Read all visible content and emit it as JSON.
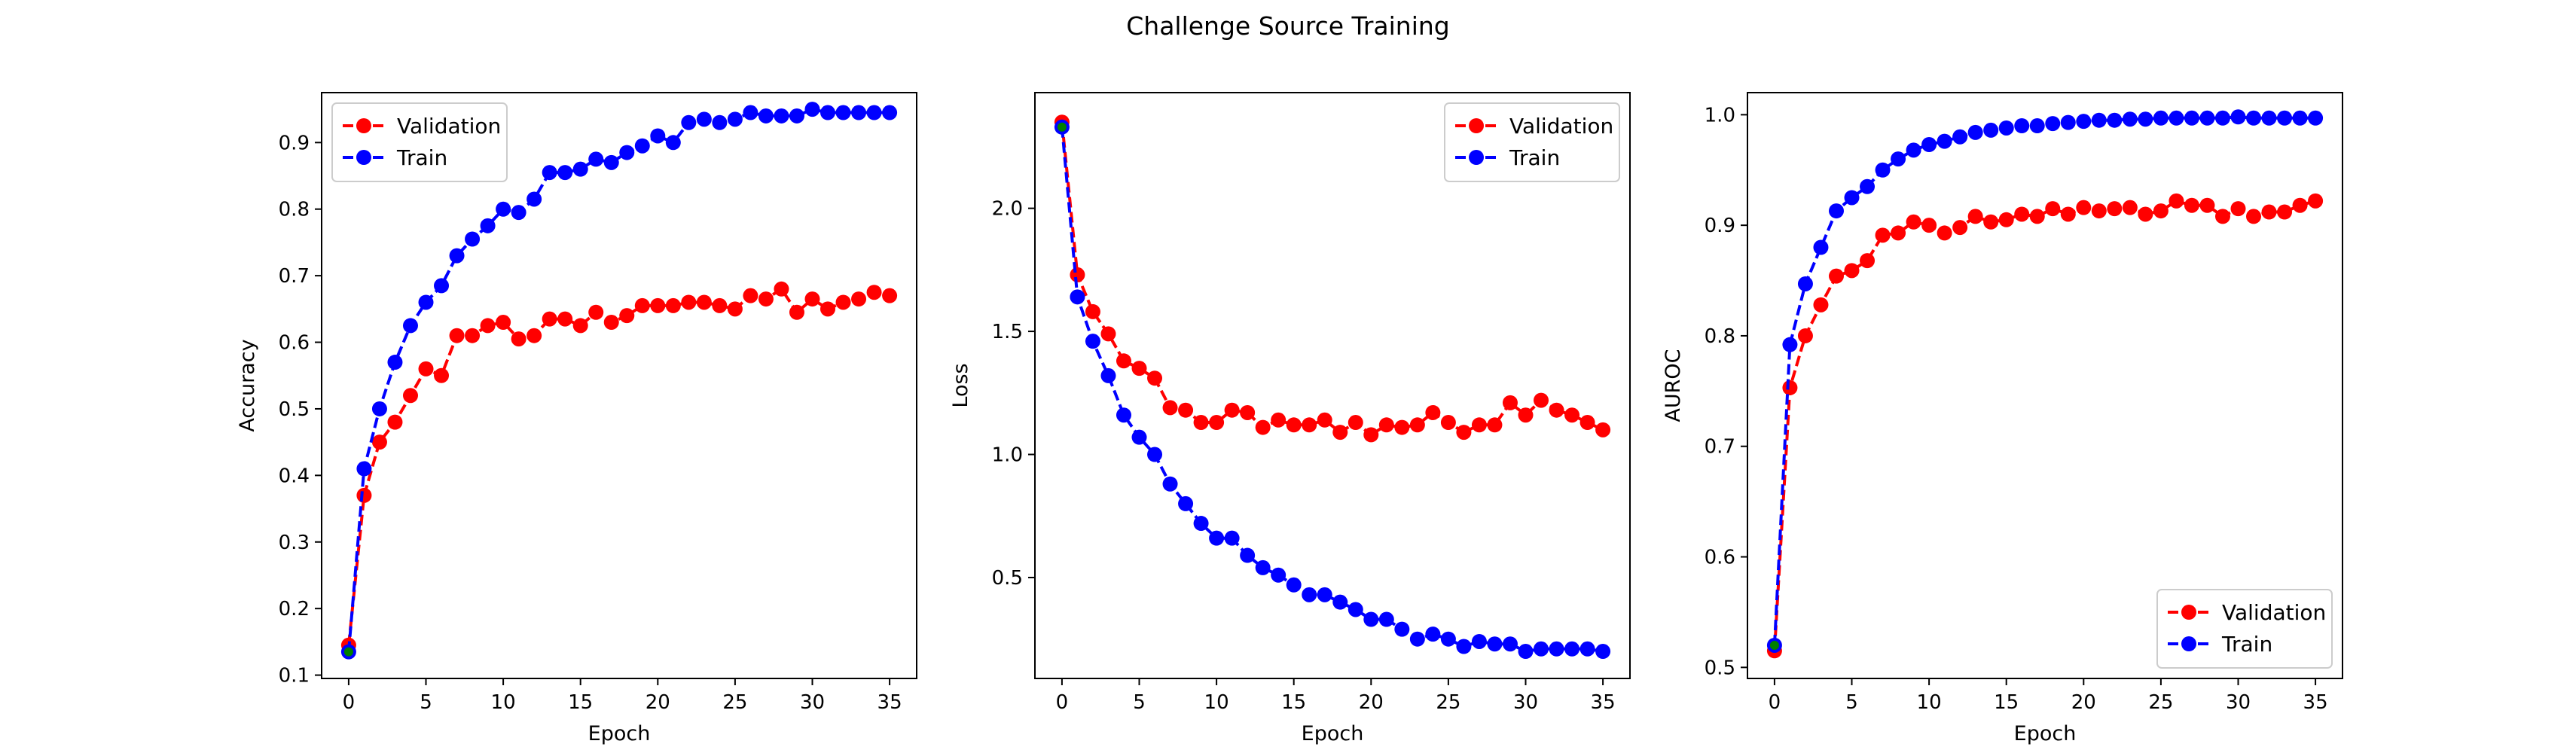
{
  "figure": {
    "suptitle": "Challenge Source Training"
  },
  "colors": {
    "validation": "#ff0000",
    "train": "#0000ff",
    "first_point_accent": "#008000"
  },
  "chart_data": [
    {
      "type": "line",
      "title": "",
      "xlabel": "Epoch",
      "ylabel": "Accuracy",
      "xlim": [
        -1.75,
        36.75
      ],
      "ylim": [
        0.095,
        0.975
      ],
      "xticks": [
        0,
        5,
        10,
        15,
        20,
        25,
        30,
        35
      ],
      "yticks": [
        0.1,
        0.2,
        0.3,
        0.4,
        0.5,
        0.6,
        0.7,
        0.8,
        0.9
      ],
      "ytick_labels": [
        "0.1",
        "0.2",
        "0.3",
        "0.4",
        "0.5",
        "0.6",
        "0.7",
        "0.8",
        "0.9"
      ],
      "grid": false,
      "legend_position": "upper-left",
      "x": [
        0,
        1,
        2,
        3,
        4,
        5,
        6,
        7,
        8,
        9,
        10,
        11,
        12,
        13,
        14,
        15,
        16,
        17,
        18,
        19,
        20,
        21,
        22,
        23,
        24,
        25,
        26,
        27,
        28,
        29,
        30,
        31,
        32,
        33,
        34,
        35
      ],
      "series": [
        {
          "name": "Validation",
          "color": "#ff0000",
          "linestyle": "dashed",
          "marker": "circle",
          "values": [
            0.145,
            0.37,
            0.45,
            0.48,
            0.52,
            0.56,
            0.55,
            0.61,
            0.61,
            0.625,
            0.63,
            0.605,
            0.61,
            0.635,
            0.635,
            0.625,
            0.645,
            0.63,
            0.64,
            0.655,
            0.655,
            0.655,
            0.66,
            0.66,
            0.655,
            0.65,
            0.67,
            0.665,
            0.68,
            0.645,
            0.665,
            0.65,
            0.66,
            0.665,
            0.675,
            0.67
          ]
        },
        {
          "name": "Train",
          "color": "#0000ff",
          "linestyle": "dashed",
          "marker": "circle",
          "values": [
            0.135,
            0.41,
            0.5,
            0.57,
            0.625,
            0.66,
            0.685,
            0.73,
            0.755,
            0.775,
            0.8,
            0.795,
            0.815,
            0.855,
            0.855,
            0.86,
            0.875,
            0.87,
            0.885,
            0.895,
            0.91,
            0.9,
            0.93,
            0.935,
            0.93,
            0.935,
            0.945,
            0.94,
            0.94,
            0.94,
            0.95,
            0.945,
            0.945,
            0.945,
            0.945,
            0.945
          ]
        }
      ]
    },
    {
      "type": "line",
      "title": "",
      "xlabel": "Epoch",
      "ylabel": "Loss",
      "xlim": [
        -1.75,
        36.75
      ],
      "ylim": [
        0.09,
        2.47
      ],
      "xticks": [
        0,
        5,
        10,
        15,
        20,
        25,
        30,
        35
      ],
      "yticks": [
        0.5,
        1.0,
        1.5,
        2.0
      ],
      "ytick_labels": [
        "0.5",
        "1.0",
        "1.5",
        "2.0"
      ],
      "grid": false,
      "legend_position": "upper-right",
      "x": [
        0,
        1,
        2,
        3,
        4,
        5,
        6,
        7,
        8,
        9,
        10,
        11,
        12,
        13,
        14,
        15,
        16,
        17,
        18,
        19,
        20,
        21,
        22,
        23,
        24,
        25,
        26,
        27,
        28,
        29,
        30,
        31,
        32,
        33,
        34,
        35
      ],
      "series": [
        {
          "name": "Validation",
          "color": "#ff0000",
          "linestyle": "dashed",
          "marker": "circle",
          "values": [
            2.35,
            1.73,
            1.58,
            1.49,
            1.38,
            1.35,
            1.31,
            1.19,
            1.18,
            1.13,
            1.13,
            1.18,
            1.17,
            1.11,
            1.14,
            1.12,
            1.12,
            1.14,
            1.09,
            1.13,
            1.08,
            1.12,
            1.11,
            1.12,
            1.17,
            1.13,
            1.09,
            1.12,
            1.12,
            1.21,
            1.16,
            1.22,
            1.18,
            1.16,
            1.13,
            1.1
          ]
        },
        {
          "name": "Train",
          "color": "#0000ff",
          "linestyle": "dashed",
          "marker": "circle",
          "values": [
            2.33,
            1.64,
            1.46,
            1.32,
            1.16,
            1.07,
            1.0,
            0.88,
            0.8,
            0.72,
            0.66,
            0.66,
            0.59,
            0.54,
            0.51,
            0.47,
            0.43,
            0.43,
            0.4,
            0.37,
            0.33,
            0.33,
            0.29,
            0.25,
            0.27,
            0.25,
            0.22,
            0.24,
            0.23,
            0.23,
            0.2,
            0.21,
            0.21,
            0.21,
            0.21,
            0.2
          ]
        }
      ]
    },
    {
      "type": "line",
      "title": "",
      "xlabel": "Epoch",
      "ylabel": "AUROC",
      "xlim": [
        -1.75,
        36.75
      ],
      "ylim": [
        0.49,
        1.02
      ],
      "xticks": [
        0,
        5,
        10,
        15,
        20,
        25,
        30,
        35
      ],
      "yticks": [
        0.5,
        0.6,
        0.7,
        0.8,
        0.9,
        1.0
      ],
      "ytick_labels": [
        "0.5",
        "0.6",
        "0.7",
        "0.8",
        "0.9",
        "1.0"
      ],
      "grid": false,
      "legend_position": "lower-right",
      "x": [
        0,
        1,
        2,
        3,
        4,
        5,
        6,
        7,
        8,
        9,
        10,
        11,
        12,
        13,
        14,
        15,
        16,
        17,
        18,
        19,
        20,
        21,
        22,
        23,
        24,
        25,
        26,
        27,
        28,
        29,
        30,
        31,
        32,
        33,
        34,
        35
      ],
      "series": [
        {
          "name": "Validation",
          "color": "#ff0000",
          "linestyle": "dashed",
          "marker": "circle",
          "values": [
            0.515,
            0.753,
            0.8,
            0.828,
            0.854,
            0.859,
            0.868,
            0.891,
            0.893,
            0.903,
            0.9,
            0.893,
            0.898,
            0.908,
            0.903,
            0.905,
            0.91,
            0.908,
            0.915,
            0.91,
            0.916,
            0.913,
            0.915,
            0.916,
            0.91,
            0.913,
            0.922,
            0.918,
            0.918,
            0.908,
            0.915,
            0.908,
            0.912,
            0.912,
            0.918,
            0.922
          ]
        },
        {
          "name": "Train",
          "color": "#0000ff",
          "linestyle": "dashed",
          "marker": "circle",
          "values": [
            0.52,
            0.792,
            0.847,
            0.88,
            0.913,
            0.925,
            0.935,
            0.95,
            0.96,
            0.968,
            0.973,
            0.976,
            0.98,
            0.984,
            0.986,
            0.988,
            0.99,
            0.99,
            0.992,
            0.993,
            0.994,
            0.995,
            0.995,
            0.996,
            0.996,
            0.997,
            0.997,
            0.997,
            0.997,
            0.997,
            0.998,
            0.997,
            0.997,
            0.997,
            0.997,
            0.997
          ]
        }
      ]
    }
  ]
}
